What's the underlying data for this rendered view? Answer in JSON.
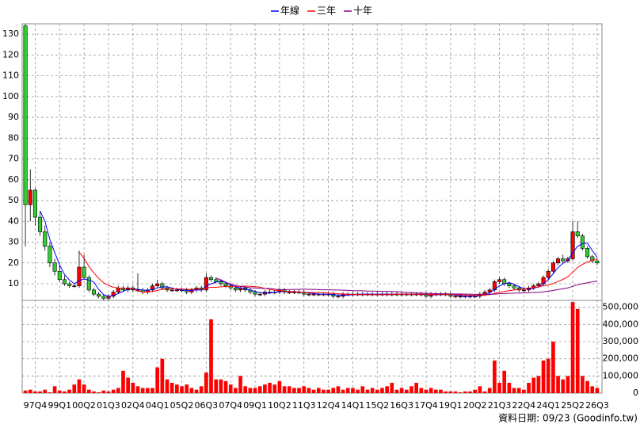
{
  "chart_data": {
    "type": "candlestick",
    "categories": [
      null,
      null,
      "97Q4",
      null,
      null,
      null,
      null,
      "99Q1",
      null,
      null,
      null,
      null,
      "00Q2",
      null,
      null,
      null,
      null,
      "01Q3",
      null,
      null,
      null,
      null,
      "02Q4",
      null,
      null,
      null,
      null,
      "04Q1",
      null,
      null,
      null,
      null,
      "05Q2",
      null,
      null,
      null,
      null,
      "06Q3",
      null,
      null,
      null,
      null,
      "07Q4",
      null,
      null,
      null,
      null,
      "09Q1",
      null,
      null,
      null,
      null,
      "10Q2",
      null,
      null,
      null,
      null,
      "11Q3",
      null,
      null,
      null,
      null,
      "12Q4",
      null,
      null,
      null,
      null,
      "14Q1",
      null,
      null,
      null,
      null,
      "15Q2",
      null,
      null,
      null,
      null,
      "16Q3",
      null,
      null,
      null,
      null,
      "17Q4",
      null,
      null,
      null,
      null,
      "19Q1",
      null,
      null,
      null,
      null,
      "20Q2",
      null,
      null,
      null,
      null,
      "21Q3",
      null,
      null,
      null,
      null,
      "22Q4",
      null,
      null,
      null,
      null,
      "24Q1",
      null,
      null,
      null,
      null,
      "25Q2",
      null,
      null,
      null,
      null,
      "26Q3"
    ],
    "open": [
      134,
      48,
      55,
      42,
      35,
      28,
      20,
      16,
      12,
      10,
      9,
      9,
      18,
      13,
      7,
      5,
      4,
      3,
      4,
      6,
      8,
      7,
      8,
      7,
      7,
      6,
      7,
      9,
      10,
      8,
      7,
      7,
      7,
      7,
      6,
      7,
      8,
      7,
      13,
      12,
      11,
      10,
      9,
      8,
      7,
      8,
      7,
      6,
      5,
      5,
      6,
      6,
      6,
      7,
      6,
      6,
      6,
      6,
      5,
      5,
      5,
      5,
      5,
      5,
      4,
      4,
      5,
      5,
      5,
      5,
      5,
      5,
      5,
      5,
      5,
      5,
      5,
      5,
      5,
      5,
      5,
      5,
      5,
      4,
      5,
      5,
      5,
      5,
      4,
      4,
      4,
      4,
      4,
      4,
      5,
      6,
      7,
      11,
      12,
      10,
      9,
      8,
      7,
      7,
      8,
      9,
      10,
      13,
      16,
      20,
      22,
      21,
      22,
      35,
      33,
      27,
      23,
      21
    ],
    "high": [
      135,
      65,
      56,
      45,
      38,
      30,
      22,
      19,
      14,
      11,
      10,
      26,
      24,
      14,
      8,
      6,
      5,
      5,
      7,
      9,
      9,
      9,
      9,
      15,
      8,
      8,
      10,
      12,
      11,
      9,
      8,
      8,
      8,
      8,
      8,
      9,
      9,
      15,
      14,
      13,
      12,
      11,
      10,
      9,
      9,
      9,
      8,
      7,
      6,
      7,
      7,
      7,
      8,
      8,
      7,
      7,
      7,
      7,
      6,
      6,
      6,
      6,
      6,
      6,
      5,
      6,
      6,
      6,
      6,
      6,
      6,
      6,
      6,
      6,
      6,
      6,
      6,
      6,
      6,
      6,
      6,
      6,
      6,
      6,
      6,
      6,
      6,
      6,
      5,
      5,
      5,
      5,
      5,
      6,
      7,
      8,
      12,
      13,
      13,
      11,
      10,
      9,
      8,
      9,
      10,
      11,
      14,
      17,
      21,
      23,
      24,
      23,
      40,
      40,
      34,
      28,
      24,
      22
    ],
    "low": [
      28,
      40,
      38,
      33,
      26,
      18,
      14,
      11,
      9,
      8,
      8,
      8,
      12,
      6,
      4,
      3,
      2,
      2,
      3,
      5,
      6,
      6,
      6,
      6,
      5,
      5,
      6,
      8,
      7,
      6,
      6,
      6,
      6,
      5,
      5,
      6,
      6,
      6,
      11,
      10,
      9,
      8,
      7,
      6,
      6,
      6,
      5,
      4,
      4,
      4,
      5,
      5,
      5,
      5,
      5,
      5,
      5,
      4,
      4,
      4,
      4,
      4,
      4,
      3,
      3,
      3,
      4,
      4,
      4,
      4,
      4,
      4,
      4,
      4,
      4,
      4,
      4,
      4,
      4,
      4,
      4,
      4,
      3,
      3,
      4,
      4,
      4,
      3,
      3,
      3,
      3,
      3,
      3,
      3,
      4,
      5,
      6,
      10,
      9,
      8,
      7,
      6,
      6,
      6,
      7,
      8,
      9,
      12,
      15,
      19,
      20,
      20,
      21,
      32,
      26,
      22,
      20,
      19
    ],
    "close": [
      48,
      55,
      42,
      35,
      28,
      20,
      16,
      12,
      10,
      9,
      9,
      18,
      13,
      7,
      5,
      4,
      3,
      4,
      6,
      8,
      7,
      8,
      7,
      7,
      6,
      7,
      9,
      10,
      8,
      7,
      7,
      7,
      7,
      6,
      7,
      8,
      7,
      13,
      12,
      11,
      10,
      9,
      8,
      7,
      8,
      7,
      6,
      5,
      5,
      6,
      6,
      6,
      7,
      6,
      6,
      6,
      6,
      5,
      5,
      5,
      5,
      5,
      5,
      4,
      4,
      5,
      5,
      5,
      5,
      5,
      5,
      5,
      5,
      5,
      5,
      5,
      5,
      5,
      5,
      5,
      5,
      5,
      4,
      5,
      5,
      5,
      5,
      4,
      4,
      4,
      4,
      4,
      4,
      5,
      6,
      7,
      11,
      12,
      10,
      9,
      8,
      7,
      7,
      8,
      9,
      10,
      13,
      16,
      20,
      22,
      21,
      22,
      35,
      33,
      27,
      23,
      21,
      20
    ],
    "up_color": "#ff0000",
    "down_color": "#33cc33",
    "ylim": [
      2,
      135
    ],
    "yticks": [
      10,
      20,
      30,
      40,
      50,
      60,
      70,
      80,
      90,
      100,
      110,
      120,
      130
    ],
    "grid": true,
    "series": [
      {
        "name": "年線",
        "color": "#0000ff",
        "values": [
          null,
          null,
          null,
          45,
          40,
          31.3,
          25,
          19,
          14.5,
          11.8,
          10,
          11.5,
          12.3,
          11.8,
          10.8,
          7.3,
          4.8,
          4,
          4.3,
          5.3,
          6.3,
          7.5,
          7.5,
          7.3,
          7,
          6.8,
          7.3,
          8,
          8.5,
          8.5,
          8,
          7.3,
          7,
          6.8,
          6.8,
          7,
          7,
          8.8,
          10,
          10.8,
          11.5,
          10.5,
          9.5,
          8.5,
          8,
          7.5,
          7,
          6.3,
          5.8,
          5.5,
          5.5,
          5.8,
          6.3,
          6.3,
          6.3,
          6.3,
          6,
          5.8,
          5.5,
          5.3,
          5,
          5,
          5,
          4.8,
          4.5,
          4.5,
          4.5,
          4.8,
          5,
          5,
          5,
          5,
          5,
          5,
          5,
          5,
          5,
          5,
          5,
          5,
          5,
          5,
          4.8,
          4.8,
          4.8,
          4.8,
          5,
          4.8,
          4.5,
          4.3,
          4,
          4,
          4,
          4.3,
          4.8,
          5.5,
          7.3,
          9,
          10,
          10.5,
          9.8,
          8.5,
          7.8,
          7.5,
          7.8,
          8.5,
          10,
          12,
          14.8,
          17.8,
          19.8,
          21.3,
          25,
          28,
          29.3,
          29.5,
          26,
          22.8
        ]
      },
      {
        "name": "三年",
        "color": "#ff0000",
        "values": [
          null,
          null,
          null,
          null,
          null,
          null,
          null,
          null,
          null,
          null,
          null,
          25.2,
          22.3,
          18.3,
          15.2,
          12.6,
          10.5,
          9.2,
          8.3,
          8,
          7.8,
          7.7,
          7.5,
          6.6,
          6,
          6,
          6.3,
          6.8,
          7.3,
          7.5,
          7.6,
          7.5,
          7.5,
          7.3,
          7.3,
          7.4,
          7.5,
          8,
          8.3,
          8.3,
          8.5,
          8.7,
          8.8,
          8.8,
          8.8,
          8.9,
          8.8,
          8.6,
          8.4,
          7.8,
          7.3,
          6.9,
          6.7,
          6.4,
          6.3,
          6.2,
          6,
          5.8,
          5.8,
          5.8,
          5.8,
          5.7,
          5.6,
          5.4,
          5.2,
          5.1,
          5,
          4.9,
          4.8,
          4.8,
          4.8,
          4.8,
          4.8,
          4.8,
          4.8,
          4.9,
          5,
          5,
          5,
          5,
          5,
          5,
          4.9,
          4.9,
          4.9,
          4.9,
          4.9,
          4.8,
          4.8,
          4.7,
          4.6,
          4.5,
          4.4,
          4.4,
          4.6,
          4.8,
          5.3,
          5.8,
          6.3,
          6.7,
          7,
          7.3,
          7.5,
          7.8,
          8.2,
          8.5,
          9,
          9.4,
          10.1,
          11.1,
          12.1,
          13.3,
          15.6,
          17.8,
          19.3,
          20.5,
          21.4,
          22
        ]
      },
      {
        "name": "十年",
        "color": "#800080",
        "values": [
          null,
          null,
          null,
          null,
          null,
          null,
          null,
          null,
          null,
          null,
          null,
          null,
          null,
          null,
          null,
          null,
          null,
          null,
          null,
          null,
          null,
          null,
          null,
          null,
          null,
          null,
          null,
          null,
          null,
          null,
          null,
          null,
          null,
          null,
          null,
          null,
          null,
          null,
          null,
          12.8,
          11.9,
          10.7,
          9.9,
          9.2,
          8.7,
          8.4,
          8.1,
          7.9,
          7.8,
          7.7,
          7.7,
          7.4,
          7.2,
          7.2,
          7.2,
          7.3,
          7.3,
          7.4,
          7.3,
          7.3,
          7.2,
          7.1,
          7.1,
          7,
          7,
          6.9,
          6.8,
          6.7,
          6.6,
          6.6,
          6.5,
          6.5,
          6.4,
          6.4,
          6.3,
          6.3,
          6.2,
          6,
          5.8,
          5.7,
          5.6,
          5.5,
          5.4,
          5.3,
          5.2,
          5.2,
          5.2,
          5.1,
          5.1,
          5.1,
          5,
          5,
          4.9,
          4.9,
          4.9,
          4.9,
          5,
          5.2,
          5.3,
          5.4,
          5.5,
          5.5,
          5.6,
          5.7,
          5.8,
          5.9,
          6.1,
          6.4,
          6.8,
          7.2,
          7.6,
          8,
          8.8,
          9.5,
          10,
          10.5,
          10.9,
          11.3
        ]
      }
    ],
    "volume": {
      "type": "bar",
      "color": "#ff0000",
      "values": [
        15000,
        20000,
        10000,
        10000,
        20000,
        5000,
        40000,
        15000,
        10000,
        20000,
        50000,
        80000,
        50000,
        20000,
        10000,
        5000,
        15000,
        10000,
        20000,
        30000,
        130000,
        90000,
        60000,
        40000,
        30000,
        30000,
        30000,
        150000,
        200000,
        80000,
        60000,
        50000,
        40000,
        50000,
        30000,
        20000,
        40000,
        120000,
        430000,
        80000,
        80000,
        70000,
        50000,
        30000,
        100000,
        40000,
        30000,
        30000,
        40000,
        50000,
        60000,
        50000,
        70000,
        40000,
        40000,
        30000,
        30000,
        40000,
        30000,
        20000,
        30000,
        20000,
        20000,
        30000,
        40000,
        20000,
        30000,
        30000,
        20000,
        40000,
        20000,
        30000,
        20000,
        30000,
        40000,
        60000,
        20000,
        30000,
        20000,
        40000,
        60000,
        30000,
        20000,
        30000,
        20000,
        20000,
        10000,
        10000,
        10000,
        5000,
        10000,
        10000,
        20000,
        40000,
        10000,
        30000,
        190000,
        60000,
        130000,
        60000,
        30000,
        30000,
        20000,
        60000,
        90000,
        100000,
        190000,
        200000,
        300000,
        100000,
        80000,
        100000,
        530000,
        490000,
        100000,
        70000,
        40000,
        30000
      ],
      "ylim": [
        0,
        540000
      ],
      "yticks": [
        0,
        {
          "value": 100000,
          "label": "100,000"
        },
        {
          "value": 200000,
          "label": "200,000"
        },
        {
          "value": 300000,
          "label": "300,000"
        },
        {
          "value": 400000,
          "label": "400,000"
        },
        {
          "value": 500000,
          "label": "500,000"
        }
      ]
    },
    "note": "資料日期: 09/23  (Goodinfo.tw)"
  }
}
